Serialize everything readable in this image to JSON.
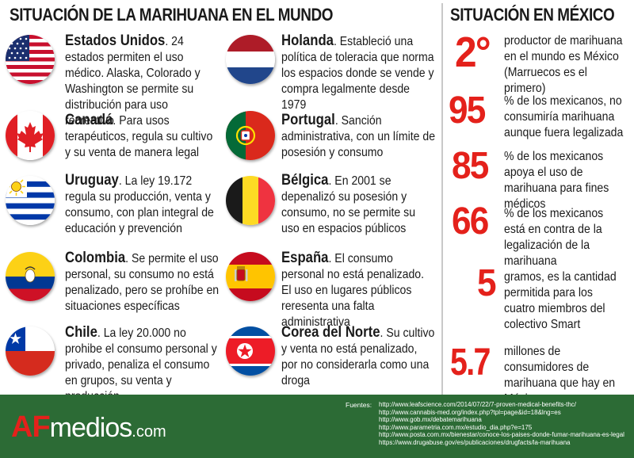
{
  "title_left": "SITUACIÓN  DE LA MARIHUANA EN EL MUNDO",
  "title_right": "SITUACIÓN EN MÉXICO",
  "countries": [
    {
      "name": "Estados Unidos",
      "text": ". 24 estados permiten el uso médico. Alaska, Colorado y Washington se permite su distribución para uso recreativo",
      "flag_icon": "usa-flag-icon"
    },
    {
      "name": "Canadá",
      "text": ". Para usos terapéuticos, regula su cultivo y su venta de manera legal",
      "flag_icon": "canada-flag-icon"
    },
    {
      "name": "Uruguay",
      "text": ". La ley 19.172 regula su producción, venta y consumo, con plan integral de educación y prevención",
      "flag_icon": "uruguay-flag-icon"
    },
    {
      "name": "Colombia",
      "text": ". Se permite el uso personal, su consumo no está penalizado, pero se prohíbe en situaciones específicas",
      "flag_icon": "colombia-flag-icon"
    },
    {
      "name": "Chile",
      "text": ". La ley 20.000 no prohibe el consumo personal y privado, penaliza el consumo en grupos, su venta y producción",
      "flag_icon": "chile-flag-icon"
    },
    {
      "name": "Holanda",
      "text": ". Estableció una política de toleracia que norma los espacios donde se vende y compra legalmente desde 1979",
      "flag_icon": "netherlands-flag-icon"
    },
    {
      "name": "Portugal",
      "text": ". Sanción administrativa, con un límite de posesión y consumo",
      "flag_icon": "portugal-flag-icon"
    },
    {
      "name": "Bélgica",
      "text": ". En 2001 se depenalizó su posesión y consumo, no se permite su uso en espacios públicos",
      "flag_icon": "belgium-flag-icon"
    },
    {
      "name": "España",
      "text": ". El consumo personal no está penalizado. El uso en lugares públicos reresenta una falta administrativa",
      "flag_icon": "spain-flag-icon"
    },
    {
      "name": "Corea del Norte",
      "text": ". Su cultivo y venta no está penalizado, por no considerarla como una droga",
      "flag_icon": "north-korea-flag-icon"
    }
  ],
  "stats": [
    {
      "value": "2°",
      "desc": "productor de marihuana en el mundo es México (Marruecos es el primero)"
    },
    {
      "value": "95",
      "desc": "% de los mexicanos,  no consumiría marihuana aunque fuera legalizada"
    },
    {
      "value": "85",
      "desc": "% de los mexicanos apoya el uso de marihuana para fines médicos"
    },
    {
      "value": "66",
      "desc": "% de los mexicanos está en contra de la legalización de la marihuana"
    },
    {
      "value": "5",
      "desc": "gramos, es la cantidad permitida para los cuatro miembros del colectivo Smart"
    },
    {
      "value": "5.7",
      "desc": "millones de consumidores de marihuana que hay en México aproximadamente"
    }
  ],
  "footer": {
    "logo_af": "AF",
    "logo_medios": "medios",
    "logo_com": ".com",
    "fuentes_label": "Fuentes:",
    "sources": [
      "http://www.leafscience.com/2014/07/22/7-proven-medical-benefits-thc/",
      "http://www.cannabis-med.org/index.php?tpl=page&id=18&lng=es",
      "http://www.gob.mx/debatemarihuana",
      "http://www.parametria.com.mx/estudio_dia.php?e=175",
      "http://www.posta.com.mx/bienestar/conoce-los-paises-donde-fumar-marihuana-es-legal",
      "https://www.drugabuse.gov/es/publicaciones/drugfacts/la-marihuana"
    ]
  },
  "colors": {
    "accent_red": "#e4211b",
    "footer_green": "#2c6b35"
  }
}
